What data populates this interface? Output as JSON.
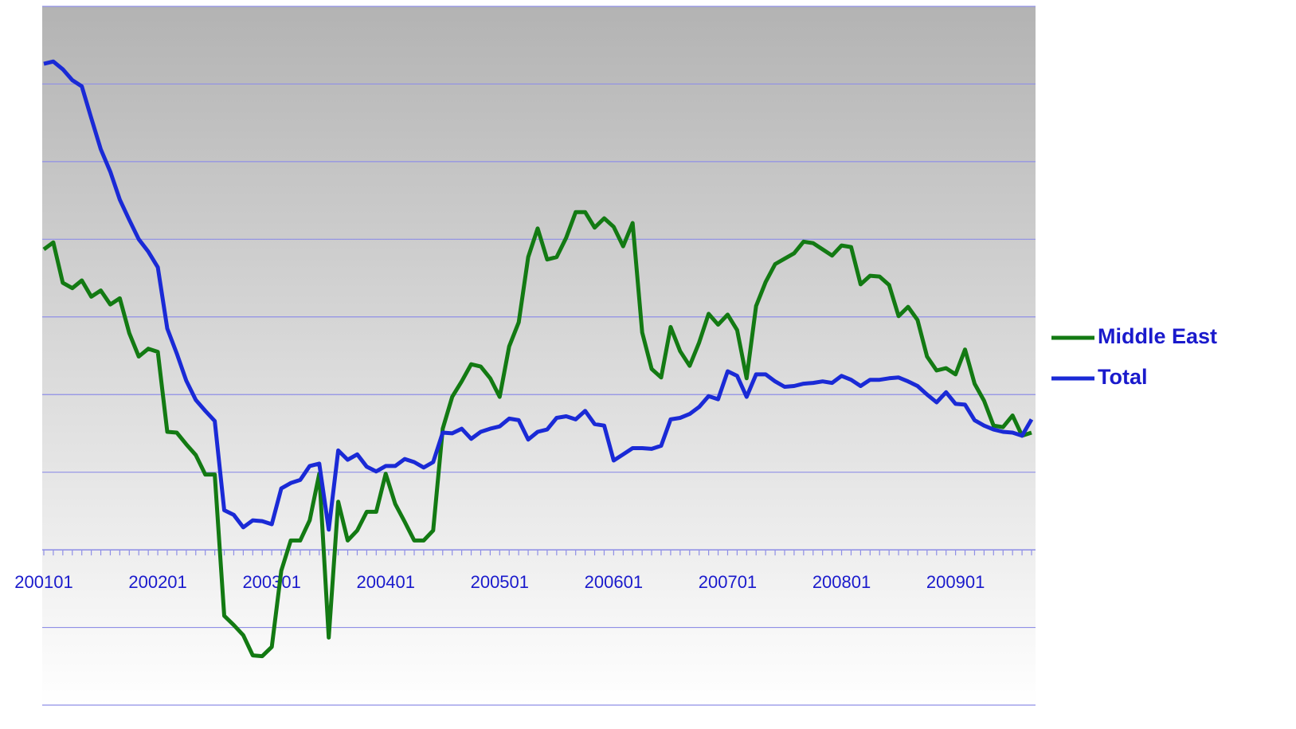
{
  "chart_data": {
    "type": "line",
    "categories": [
      "200101",
      null,
      null,
      null,
      null,
      null,
      null,
      null,
      null,
      null,
      null,
      null,
      "200201",
      null,
      null,
      null,
      null,
      null,
      null,
      null,
      null,
      null,
      null,
      null,
      "200301",
      null,
      null,
      null,
      null,
      null,
      null,
      null,
      null,
      null,
      null,
      null,
      "200401",
      null,
      null,
      null,
      null,
      null,
      null,
      null,
      null,
      null,
      null,
      null,
      "200501",
      null,
      null,
      null,
      null,
      null,
      null,
      null,
      null,
      null,
      null,
      null,
      "200601",
      null,
      null,
      null,
      null,
      null,
      null,
      null,
      null,
      null,
      null,
      null,
      "200701",
      null,
      null,
      null,
      null,
      null,
      null,
      null,
      null,
      null,
      null,
      null,
      "200801",
      null,
      null,
      null,
      null,
      null,
      null,
      null,
      null,
      null,
      null,
      null,
      "200901",
      null,
      null,
      null,
      null,
      null,
      null,
      null,
      null
    ],
    "series": [
      {
        "name": "Middle East",
        "color": "#137a13",
        "values": [
          3.87,
          3.96,
          3.44,
          3.37,
          3.47,
          3.26,
          3.34,
          3.16,
          3.24,
          2.79,
          2.49,
          2.59,
          2.55,
          1.52,
          1.51,
          1.36,
          1.22,
          0.97,
          0.97,
          -0.85,
          -0.97,
          -1.1,
          -1.36,
          -1.37,
          -1.25,
          -0.27,
          0.12,
          0.12,
          0.38,
          0.98,
          -1.13,
          0.62,
          0.12,
          0.25,
          0.49,
          0.49,
          0.98,
          0.59,
          0.36,
          0.12,
          0.12,
          0.25,
          1.56,
          1.97,
          2.17,
          2.39,
          2.36,
          2.21,
          1.97,
          2.62,
          2.93,
          3.77,
          4.14,
          3.74,
          3.77,
          4.02,
          4.35,
          4.35,
          4.15,
          4.27,
          4.16,
          3.91,
          4.21,
          2.8,
          2.33,
          2.22,
          2.87,
          2.56,
          2.37,
          2.67,
          3.04,
          2.9,
          3.03,
          2.83,
          2.21,
          3.14,
          3.45,
          3.68,
          3.75,
          3.82,
          3.97,
          3.95,
          3.87,
          3.79,
          3.92,
          3.9,
          3.42,
          3.53,
          3.52,
          3.41,
          3.01,
          3.13,
          2.96,
          2.49,
          2.31,
          2.34,
          2.26,
          2.58,
          2.14,
          1.92,
          1.6,
          1.58,
          1.73,
          1.47,
          1.51
        ]
      },
      {
        "name": "Total",
        "color": "#1a2ad6",
        "values": [
          6.26,
          6.29,
          6.19,
          6.05,
          5.97,
          5.56,
          5.16,
          4.87,
          4.51,
          4.25,
          4.0,
          3.84,
          3.64,
          2.85,
          2.53,
          2.18,
          1.93,
          1.79,
          1.66,
          0.51,
          0.45,
          0.29,
          0.38,
          0.37,
          0.33,
          0.79,
          0.86,
          0.9,
          1.08,
          1.11,
          0.26,
          1.28,
          1.16,
          1.23,
          1.07,
          1.01,
          1.08,
          1.08,
          1.17,
          1.13,
          1.06,
          1.13,
          1.51,
          1.5,
          1.56,
          1.43,
          1.52,
          1.56,
          1.59,
          1.69,
          1.67,
          1.42,
          1.52,
          1.55,
          1.7,
          1.72,
          1.68,
          1.79,
          1.62,
          1.6,
          1.15,
          1.23,
          1.31,
          1.31,
          1.3,
          1.34,
          1.68,
          1.7,
          1.75,
          1.84,
          1.98,
          1.94,
          2.3,
          2.24,
          1.97,
          2.26,
          2.26,
          2.17,
          2.1,
          2.11,
          2.14,
          2.15,
          2.17,
          2.15,
          2.24,
          2.19,
          2.11,
          2.19,
          2.19,
          2.21,
          2.22,
          2.17,
          2.11,
          2.0,
          1.9,
          2.03,
          1.88,
          1.87,
          1.67,
          1.6,
          1.55,
          1.52,
          1.51,
          1.47,
          1.68
        ]
      }
    ],
    "ylim": [
      -2,
      7
    ],
    "yticks": [
      -2,
      -1,
      0,
      1,
      2,
      3,
      4,
      5,
      6,
      7
    ],
    "grid": true,
    "legend": "right"
  }
}
